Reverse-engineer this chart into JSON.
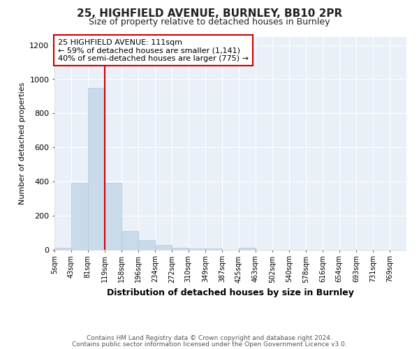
{
  "title_line1": "25, HIGHFIELD AVENUE, BURNLEY, BB10 2PR",
  "title_line2": "Size of property relative to detached houses in Burnley",
  "xlabel": "Distribution of detached houses by size in Burnley",
  "ylabel": "Number of detached properties",
  "annotation_title": "25 HIGHFIELD AVENUE: 111sqm",
  "annotation_line2": "← 59% of detached houses are smaller (1,141)",
  "annotation_line3": "40% of semi-detached houses are larger (775) →",
  "footnote1": "Contains HM Land Registry data © Crown copyright and database right 2024.",
  "footnote2": "Contains public sector information licensed under the Open Government Licence v3.0.",
  "categories": [
    "5sqm",
    "43sqm",
    "81sqm",
    "119sqm",
    "158sqm",
    "196sqm",
    "234sqm",
    "272sqm",
    "310sqm",
    "349sqm",
    "387sqm",
    "425sqm",
    "463sqm",
    "502sqm",
    "540sqm",
    "578sqm",
    "616sqm",
    "654sqm",
    "693sqm",
    "731sqm",
    "769sqm"
  ],
  "bin_edges": [
    5,
    43,
    81,
    119,
    158,
    196,
    234,
    272,
    310,
    349,
    387,
    425,
    463,
    502,
    540,
    578,
    616,
    654,
    693,
    731,
    769,
    807
  ],
  "values": [
    10,
    390,
    950,
    390,
    110,
    55,
    25,
    10,
    5,
    5,
    0,
    10,
    0,
    0,
    0,
    0,
    0,
    0,
    0,
    0,
    0
  ],
  "bar_color": "#c9daea",
  "bar_edgecolor": "#b0c8dc",
  "red_line_color": "#cc0000",
  "background_color": "#ffffff",
  "plot_bg_color": "#eaf0f8",
  "annotation_box_color": "#ffffff",
  "annotation_box_edgecolor": "#cc0000",
  "ylim": [
    0,
    1250
  ],
  "yticks": [
    0,
    200,
    400,
    600,
    800,
    1000,
    1200
  ],
  "red_line_x": 119,
  "title1_fontsize": 11,
  "title2_fontsize": 9
}
